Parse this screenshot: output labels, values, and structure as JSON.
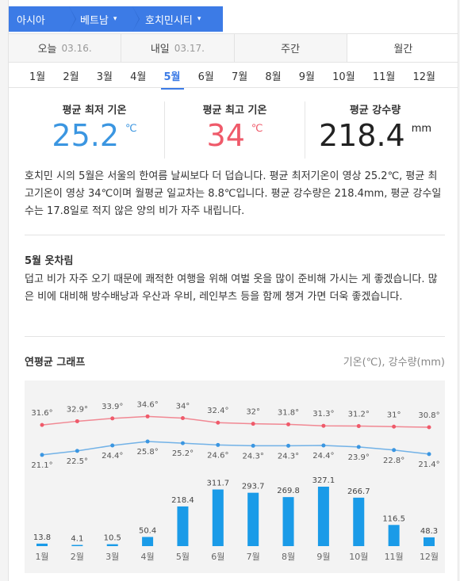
{
  "breadcrumb": [
    {
      "label": "아시아"
    },
    {
      "label": "베트남"
    },
    {
      "label": "호치민시티"
    }
  ],
  "day_tabs": [
    {
      "label": "오늘",
      "date": "03.16."
    },
    {
      "label": "내일",
      "date": "03.17."
    },
    {
      "label": "주간",
      "date": ""
    },
    {
      "label": "월간",
      "date": ""
    }
  ],
  "months": [
    "1월",
    "2월",
    "3월",
    "4월",
    "5월",
    "6월",
    "7월",
    "8월",
    "9월",
    "10월",
    "11월",
    "12월"
  ],
  "selected_month": "5월",
  "stats": {
    "min": {
      "label": "평균 최저 기온",
      "value": "25.2",
      "unit": "℃",
      "color": "#3b96e1"
    },
    "max": {
      "label": "평균 최고 기온",
      "value": "34",
      "unit": "℃",
      "color": "#ef5a6a"
    },
    "rain": {
      "label": "평균 강수량",
      "value": "218.4",
      "unit": "mm",
      "color": "#222222"
    }
  },
  "description": "호치민 시의 5월은 서울의 한여름 날씨보다 더 덥습니다. 평균 최저기온이 영상 25.2℃, 평균 최고기온이 영상 34℃이며 월평균 일교차는 8.8℃입니다. 평균 강수량은 218.4mm, 평균 강수일수는 17.8일로 적지 않은 양의 비가 자주 내립니다.",
  "clothing": {
    "title": "5월 옷차림",
    "text": "덥고 비가 자주 오기 때문에 쾌적한 여행을 위해 여벌 옷을 많이 준비해 가시는 게 좋겠습니다. 많은 비에 대비해 방수배낭과 우산과 우비, 레인부츠 등을 함께 챙겨 가면 더욱 좋겠습니다."
  },
  "graph": {
    "title": "연평균 그래프",
    "unit_label": "기온(℃), 강수량(mm)"
  },
  "colors": {
    "accent": "#3c7be6",
    "max_line": "#ef5a6a",
    "min_line": "#3b96e1",
    "bar": "#1a9be8"
  },
  "chart_data": {
    "type": "bar",
    "categories": [
      "1월",
      "2월",
      "3월",
      "4월",
      "5월",
      "6월",
      "7월",
      "8월",
      "9월",
      "10월",
      "11월",
      "12월"
    ],
    "series": [
      {
        "name": "",
        "type": "line",
        "values": [
          31.6,
          32.9,
          33.9,
          34.6,
          34,
          32.4,
          32,
          31.8,
          31.3,
          31.2,
          31,
          30.8
        ],
        "labels": [
          "31.6°",
          "32.9°",
          "33.9°",
          "34.6°",
          "34°",
          "32.4°",
          "32°",
          "31.8°",
          "31.3°",
          "31.2°",
          "31°",
          "30.8°"
        ]
      },
      {
        "name": "",
        "type": "line",
        "values": [
          21.1,
          22.5,
          24.4,
          25.8,
          25.2,
          24.6,
          24.3,
          24.3,
          24.4,
          23.9,
          22.8,
          21.4
        ],
        "labels": [
          "21.1°",
          "22.5°",
          "24.4°",
          "25.8°",
          "25.2°",
          "24.6°",
          "24.3°",
          "24.3°",
          "24.4°",
          "23.9°",
          "22.8°",
          "21.4°"
        ]
      },
      {
        "name": "",
        "type": "bar",
        "values": [
          13.8,
          4.1,
          10.5,
          50.4,
          218.4,
          311.7,
          293.7,
          269.8,
          327.1,
          266.7,
          116.5,
          48.3
        ],
        "labels": [
          "13.8",
          "4.1",
          "10.5",
          "50.4",
          "218.4",
          "311.7",
          "293.7",
          "269.8",
          "327.1",
          "266.7",
          "116.5",
          "48.3"
        ]
      }
    ],
    "title": "",
    "xlabel": "",
    "ylabel": "",
    "grid": false
  }
}
